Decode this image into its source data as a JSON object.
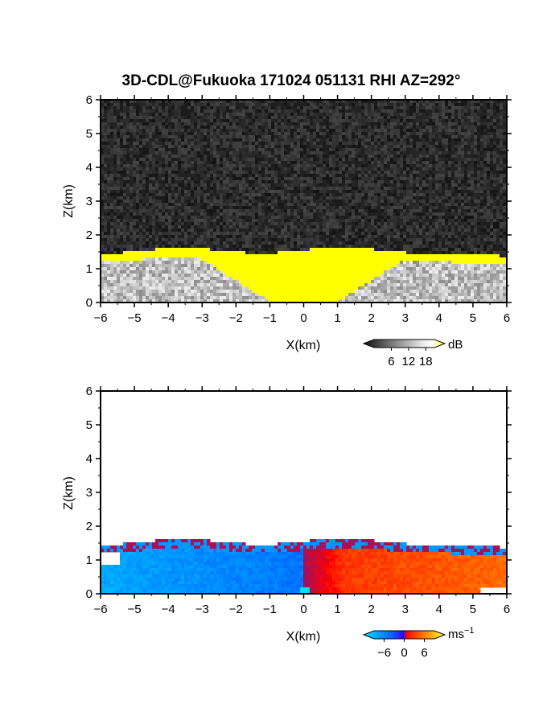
{
  "title": "3D-CDL@Fukuoka 171024 051131 RHI AZ=292°",
  "chart_data": [
    {
      "type": "heatmap",
      "name": "reflectivity",
      "xlabel": "X(km)",
      "ylabel": "Z(km)",
      "xlim": [
        -6,
        6
      ],
      "ylim": [
        0,
        6
      ],
      "xticks": [
        -6,
        -5,
        -4,
        -3,
        -2,
        -1,
        0,
        1,
        2,
        3,
        4,
        5,
        6
      ],
      "yticks": [
        0,
        1,
        2,
        3,
        4,
        5,
        6
      ],
      "colorbar": {
        "unit": "dB",
        "ticks": [
          6,
          12,
          18
        ],
        "range": [
          0,
          21
        ],
        "colors": [
          "#1a1a1a",
          "#ffffff",
          "#ffff00"
        ]
      },
      "echo_top_km": 1.5,
      "saturated_value_db": 21
    },
    {
      "type": "heatmap",
      "name": "doppler_velocity",
      "xlabel": "X(km)",
      "ylabel": "Z(km)",
      "xlim": [
        -6,
        6
      ],
      "ylim": [
        0,
        6
      ],
      "xticks": [
        -6,
        -5,
        -4,
        -3,
        -2,
        -1,
        0,
        1,
        2,
        3,
        4,
        5,
        6
      ],
      "yticks": [
        0,
        1,
        2,
        3,
        4,
        5,
        6
      ],
      "colorbar": {
        "unit": "ms",
        "unit_exp": "−1",
        "ticks": [
          -6,
          0,
          6
        ],
        "tick_labels": [
          "−6",
          "0",
          "6"
        ],
        "range": [
          -9,
          9
        ],
        "colors": [
          "#00ffff",
          "#0030ff",
          "#ff0000",
          "#ffff00"
        ]
      },
      "echo_top_km": 1.5,
      "left_side_velocity_ms": -5,
      "right_side_velocity_ms": 4
    }
  ]
}
